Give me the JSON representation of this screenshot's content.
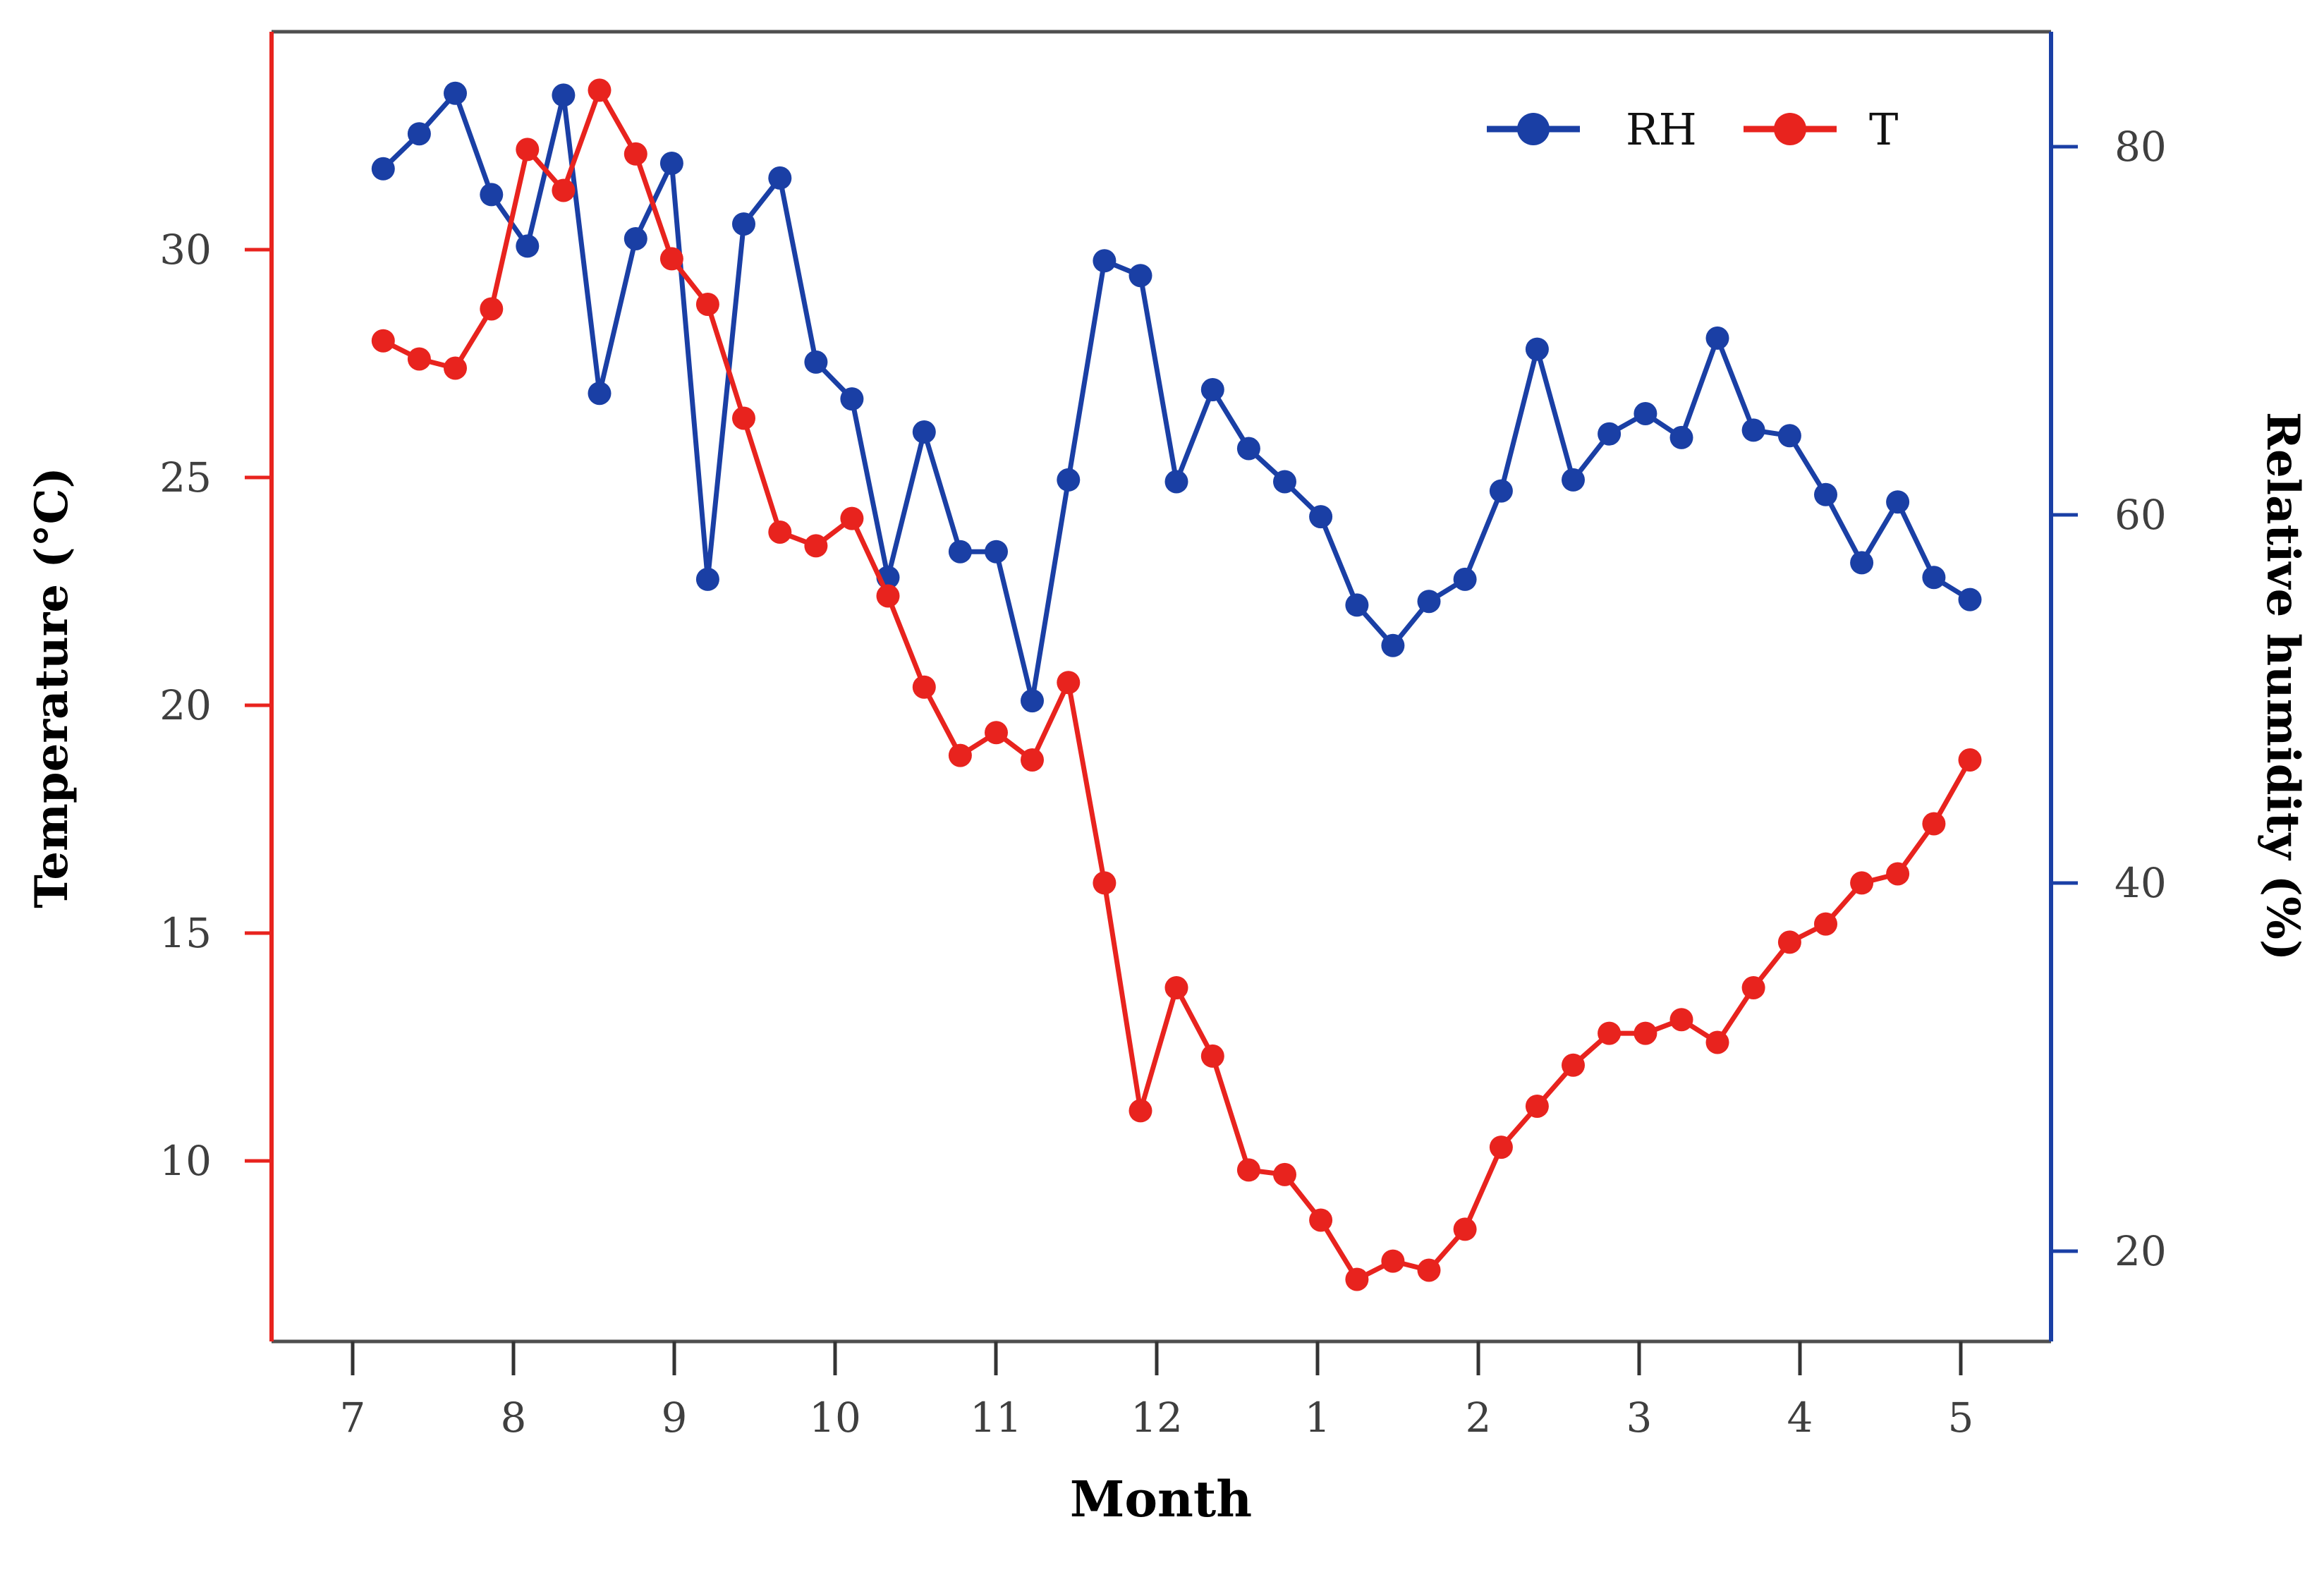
{
  "chart_data": {
    "type": "line",
    "title": "",
    "xlabel": "Month",
    "ylabel_left": "Temperature (°C)",
    "ylabel_right": "Relative humidity (%)",
    "x_tick_labels": [
      "7",
      "8",
      "9",
      "10",
      "11",
      "12",
      "1",
      "2",
      "3",
      "4",
      "5"
    ],
    "x_tick_months": [
      7,
      8,
      9,
      10,
      11,
      12,
      13,
      14,
      15,
      16,
      17
    ],
    "x_range_months": [
      6.5,
      17.56
    ],
    "left_axis": {
      "label": "Temperature (°C)",
      "ticks": [
        10,
        15,
        20,
        25,
        30
      ],
      "range": [
        6.0,
        34.8
      ],
      "color": "#e8231e"
    },
    "right_axis": {
      "label": "Relative humidity (%)",
      "ticks": [
        20,
        40,
        60,
        80
      ],
      "range": [
        15.1,
        86.3
      ],
      "color": "#1a3fa5"
    },
    "grid": false,
    "legend_position": "top-right-inside",
    "legend_items": [
      {
        "label": "RH",
        "color": "#1a3fa5"
      },
      {
        "label": "T",
        "color": "#e8231e"
      }
    ],
    "frame_color": "#4f4f4f",
    "series": [
      {
        "name": "RH",
        "axis": "right",
        "color": "#1a3fa5",
        "months": [
          7.19,
          7.414,
          7.638,
          7.863,
          8.087,
          8.311,
          8.535,
          8.76,
          8.984,
          9.208,
          9.432,
          9.657,
          9.881,
          10.105,
          10.329,
          10.554,
          10.778,
          11.002,
          11.226,
          11.451,
          11.675,
          11.899,
          12.123,
          12.348,
          12.572,
          12.796,
          13.02,
          13.245,
          13.469,
          13.693,
          13.917,
          14.142,
          14.366,
          14.59,
          14.814,
          15.039,
          15.263,
          15.487,
          15.711,
          15.936,
          16.16,
          16.384,
          16.608,
          16.833,
          17.057
        ],
        "values": [
          78.8,
          80.7,
          82.9,
          77.4,
          74.6,
          82.8,
          66.6,
          75.0,
          79.1,
          56.5,
          75.8,
          78.3,
          68.3,
          66.3,
          56.6,
          64.5,
          58.0,
          58.0,
          49.9,
          61.9,
          73.8,
          73.0,
          61.8,
          66.8,
          63.6,
          61.8,
          59.9,
          55.1,
          52.9,
          55.3,
          56.5,
          61.3,
          69.0,
          61.9,
          64.4,
          65.5,
          64.2,
          69.6,
          64.6,
          64.3,
          61.1,
          57.4,
          60.7,
          56.6,
          55.4
        ]
      },
      {
        "name": "T",
        "axis": "left",
        "color": "#e8231e",
        "months": [
          7.19,
          7.414,
          7.638,
          7.863,
          8.087,
          8.311,
          8.535,
          8.76,
          8.984,
          9.208,
          9.432,
          9.657,
          9.881,
          10.105,
          10.329,
          10.554,
          10.778,
          11.002,
          11.226,
          11.451,
          11.675,
          11.899,
          12.123,
          12.348,
          12.572,
          12.796,
          13.02,
          13.245,
          13.469,
          13.693,
          13.917,
          14.142,
          14.366,
          14.59,
          14.814,
          15.039,
          15.263,
          15.487,
          15.711,
          15.936,
          16.16,
          16.384,
          16.608,
          16.833,
          17.057
        ],
        "values": [
          28.0,
          27.6,
          27.4,
          28.7,
          32.2,
          31.3,
          33.5,
          32.1,
          29.8,
          28.8,
          26.3,
          23.8,
          23.5,
          24.1,
          22.4,
          20.4,
          18.9,
          19.4,
          18.8,
          20.5,
          16.1,
          11.1,
          13.8,
          12.3,
          9.8,
          9.7,
          8.7,
          7.4,
          7.8,
          7.6,
          8.5,
          10.3,
          11.2,
          12.1,
          12.8,
          12.8,
          13.1,
          12.6,
          13.8,
          14.8,
          15.2,
          16.1,
          16.3,
          17.4,
          18.8
        ]
      }
    ]
  }
}
